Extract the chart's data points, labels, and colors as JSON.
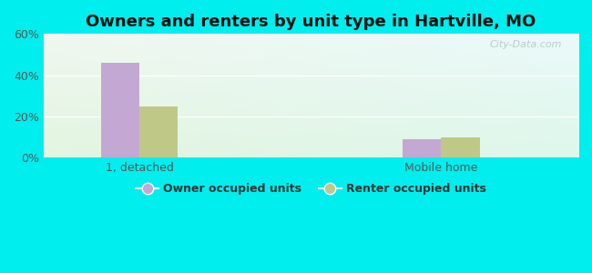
{
  "title": "Owners and renters by unit type in Hartville, MO",
  "categories": [
    "1, detached",
    "Mobile home"
  ],
  "owner_values": [
    46,
    9
  ],
  "renter_values": [
    25,
    10
  ],
  "owner_color": "#c4a8d4",
  "renter_color": "#c0c888",
  "background_color": "#00eeee",
  "ylim": [
    0,
    60
  ],
  "yticks": [
    0,
    20,
    40,
    60
  ],
  "ytick_labels": [
    "0%",
    "20%",
    "40%",
    "60%"
  ],
  "bar_width": 0.28,
  "group_centers": [
    1.0,
    3.2
  ],
  "xlim": [
    0.3,
    4.2
  ],
  "legend_owner": "Owner occupied units",
  "legend_renter": "Renter occupied units",
  "watermark": "City-Data.com",
  "title_fontsize": 13,
  "tick_fontsize": 9,
  "legend_fontsize": 9
}
